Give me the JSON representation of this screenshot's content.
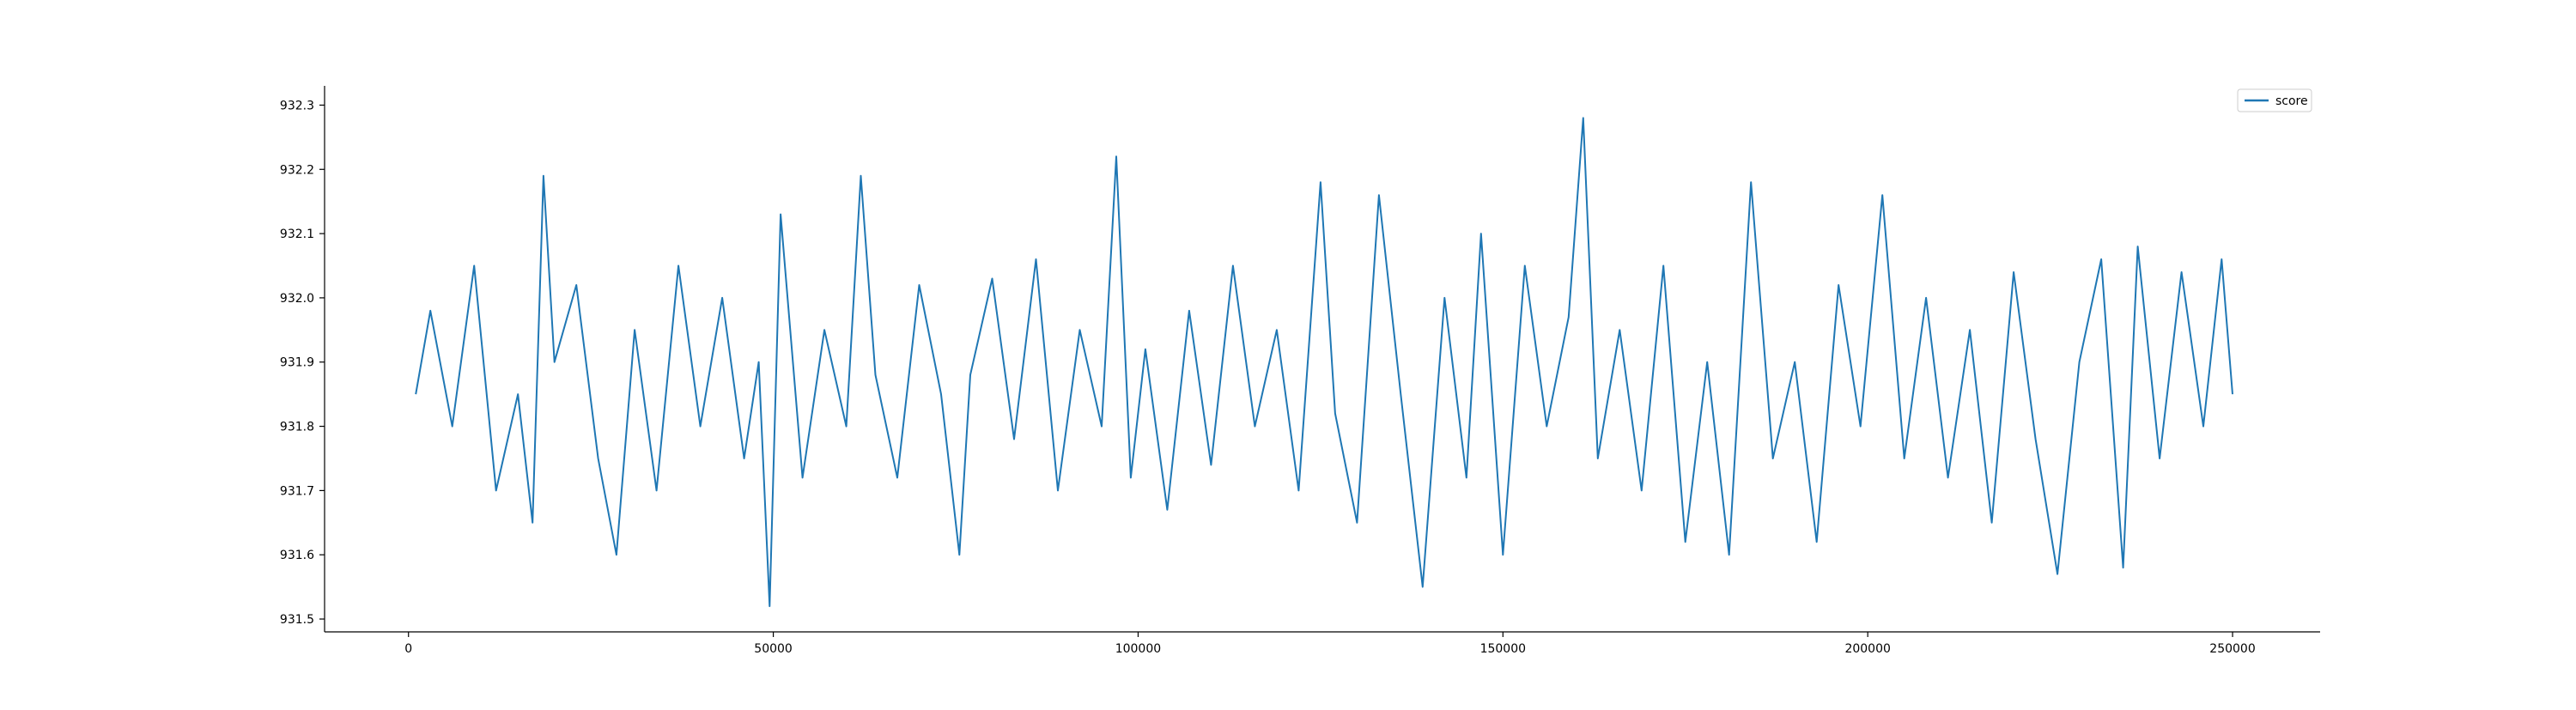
{
  "chart_data": {
    "type": "line",
    "title": "",
    "xlabel": "",
    "ylabel": "",
    "xlim": [
      -11500,
      262000
    ],
    "ylim": [
      931.48,
      932.33
    ],
    "x_ticks": [
      0,
      50000,
      100000,
      150000,
      200000,
      250000
    ],
    "x_tick_labels": [
      "0",
      "50000",
      "100000",
      "150000",
      "200000",
      "250000"
    ],
    "y_ticks": [
      931.5,
      931.6,
      931.7,
      931.8,
      931.9,
      932.0,
      932.1,
      932.2,
      932.3
    ],
    "y_tick_labels": [
      "931.5",
      "931.6",
      "931.7",
      "931.8",
      "931.9",
      "932.0",
      "932.1",
      "932.2",
      "932.3"
    ],
    "grid": false,
    "legend": {
      "position": "top-right"
    },
    "series": [
      {
        "name": "score",
        "color": "#1f77b4",
        "x": [
          1000,
          3000,
          6000,
          9000,
          12000,
          15000,
          17000,
          18500,
          20000,
          23000,
          26000,
          28500,
          31000,
          34000,
          37000,
          40000,
          43000,
          46000,
          48000,
          49500,
          51000,
          54000,
          57000,
          60000,
          62000,
          64000,
          67000,
          70000,
          73000,
          75500,
          77000,
          80000,
          83000,
          86000,
          89000,
          92000,
          95000,
          97000,
          99000,
          101000,
          104000,
          107000,
          110000,
          113000,
          116000,
          119000,
          122000,
          125000,
          127000,
          130000,
          133000,
          136000,
          139000,
          142000,
          145000,
          147000,
          150000,
          153000,
          156000,
          159000,
          161000,
          163000,
          166000,
          169000,
          172000,
          175000,
          178000,
          181000,
          184000,
          187000,
          190000,
          193000,
          196000,
          199000,
          202000,
          205000,
          208000,
          211000,
          214000,
          217000,
          220000,
          223000,
          226000,
          229000,
          232000,
          235000,
          237000,
          240000,
          243000,
          246000,
          248500,
          250000
        ],
        "y": [
          931.85,
          931.98,
          931.8,
          932.05,
          931.7,
          931.85,
          931.65,
          932.19,
          931.9,
          932.02,
          931.75,
          931.6,
          931.95,
          931.7,
          932.05,
          931.8,
          932.0,
          931.75,
          931.9,
          931.52,
          932.13,
          931.72,
          931.95,
          931.8,
          932.19,
          931.88,
          931.72,
          932.02,
          931.85,
          931.6,
          931.88,
          932.03,
          931.78,
          932.06,
          931.7,
          931.95,
          931.8,
          932.22,
          931.72,
          931.92,
          931.67,
          931.98,
          931.74,
          932.05,
          931.8,
          931.95,
          931.7,
          932.18,
          931.82,
          931.65,
          932.16,
          931.85,
          931.55,
          932.0,
          931.72,
          932.1,
          931.6,
          932.05,
          931.8,
          931.97,
          932.28,
          931.75,
          931.95,
          931.7,
          932.05,
          931.62,
          931.9,
          931.6,
          932.18,
          931.75,
          931.9,
          931.62,
          932.02,
          931.8,
          932.16,
          931.75,
          932.0,
          931.72,
          931.95,
          931.65,
          932.04,
          931.78,
          931.57,
          931.9,
          932.06,
          931.58,
          932.08,
          931.75,
          932.04,
          931.8,
          932.06,
          931.85
        ]
      }
    ]
  }
}
